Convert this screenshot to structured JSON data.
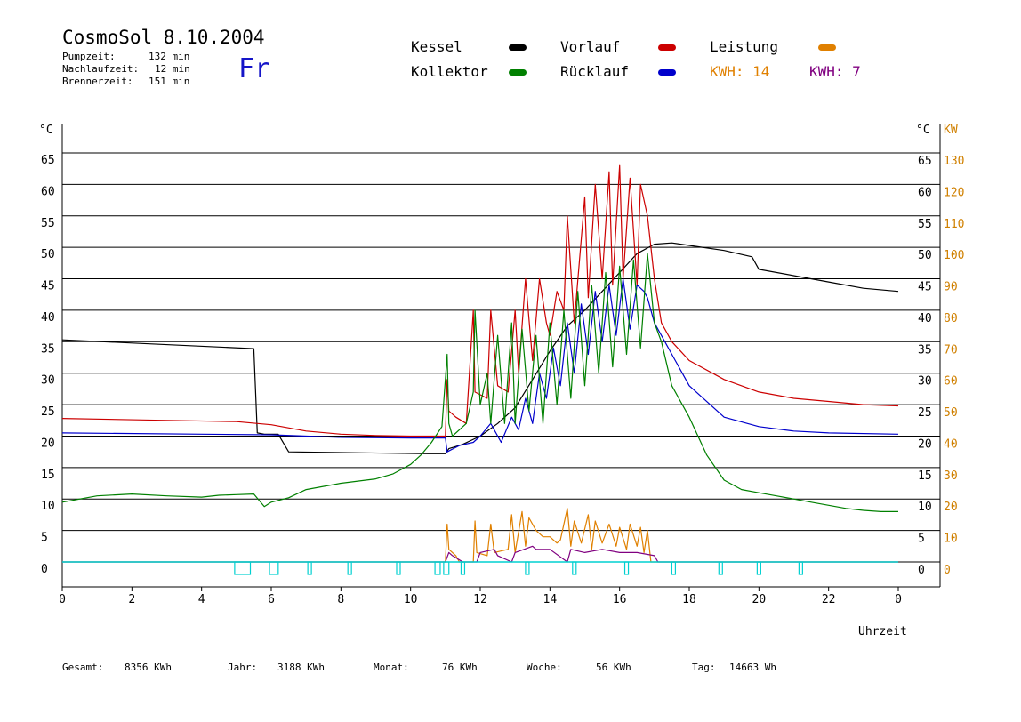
{
  "header": {
    "title": "CosmoSol 8.10.2004",
    "weekday": "Fr",
    "stats": [
      {
        "label": "Pumpzeit:",
        "value": "132 min"
      },
      {
        "label": "Nachlaufzeit:",
        "value": "12 min"
      },
      {
        "label": "Brennerzeit:",
        "value": "151 min"
      }
    ]
  },
  "legend": {
    "kessel": "Kessel",
    "kollektor": "Kollektor",
    "vorlauf": "Vorlauf",
    "ruecklauf": "Rücklauf",
    "leistung": "Leistung",
    "kwh_a": "KWH: 14",
    "kwh_b": "KWH: 7"
  },
  "footer": [
    {
      "label": "Gesamt:",
      "value": "8356 KWh"
    },
    {
      "label": "Jahr:",
      "value": "3188 KWh"
    },
    {
      "label": "Monat:",
      "value": "76 KWh"
    },
    {
      "label": "Woche:",
      "value": "56 KWh"
    },
    {
      "label": "Tag:",
      "value": "14663 Wh"
    }
  ],
  "colors": {
    "kessel": "#000000",
    "kollektor": "#008000",
    "vorlauf": "#cc0000",
    "ruecklauf": "#0000cc",
    "leistung": "#e08000",
    "leistung2": "#800080",
    "pump": "#00d0d0",
    "kw_axis": "#d08000",
    "weekday": "#1515c8"
  },
  "chart_data": {
    "type": "line",
    "xlabel": "Uhrzeit",
    "ylabel_left": "°C",
    "ylabel_right": "°C",
    "ylabel_right2": "KW",
    "xlim": [
      0,
      24
    ],
    "ylim": [
      0,
      65
    ],
    "kw_ylim": [
      0,
      130
    ],
    "x_ticks": [
      "0",
      "2",
      "4",
      "6",
      "8",
      "10",
      "12",
      "14",
      "16",
      "18",
      "20",
      "22",
      "0"
    ],
    "y_ticks": [
      "0",
      "5",
      "10",
      "15",
      "20",
      "25",
      "30",
      "35",
      "40",
      "45",
      "50",
      "55",
      "60",
      "65"
    ],
    "kw_ticks": [
      "0",
      "10",
      "20",
      "30",
      "40",
      "50",
      "60",
      "70",
      "80",
      "90",
      "100",
      "110",
      "120",
      "130"
    ],
    "grid": true,
    "series": [
      {
        "name": "Kessel",
        "color": "kessel",
        "x": [
          0,
          5.5,
          5.6,
          5.8,
          6.2,
          6.5,
          10.5,
          11.0,
          11.1,
          11.5,
          12,
          12.5,
          13,
          13.5,
          14,
          14.5,
          15,
          15.5,
          16,
          16.5,
          17,
          17.5,
          18,
          19,
          19.8,
          20,
          21,
          22,
          23,
          24
        ],
        "y": [
          35.3,
          33.9,
          20.5,
          20.3,
          20.3,
          17.5,
          17.2,
          17.2,
          18.0,
          18.7,
          20.0,
          22.0,
          24.5,
          29.0,
          33.5,
          37.5,
          40,
          43,
          46,
          49,
          50.5,
          50.7,
          50.3,
          49.5,
          48.5,
          46.5,
          45.5,
          44.5,
          43.5,
          43
        ]
      },
      {
        "name": "Vorlauf",
        "color": "vorlauf",
        "x": [
          0,
          3,
          5,
          6,
          7,
          8,
          9,
          10,
          11.0,
          11.05,
          11.1,
          11.3,
          11.6,
          11.8,
          11.85,
          12.2,
          12.3,
          12.5,
          12.8,
          13.0,
          13.1,
          13.3,
          13.5,
          13.7,
          13.9,
          14.0,
          14.2,
          14.4,
          14.5,
          14.7,
          15.0,
          15.1,
          15.3,
          15.5,
          15.7,
          15.8,
          16.0,
          16.1,
          16.3,
          16.5,
          16.6,
          16.8,
          17.0,
          17.2,
          17.5,
          18,
          19,
          20,
          21,
          22,
          23,
          24
        ],
        "y": [
          22.8,
          22.5,
          22.3,
          21.8,
          20.8,
          20.3,
          20.1,
          20.0,
          20.0,
          29,
          24,
          23,
          22,
          40,
          27,
          26,
          40,
          28,
          27,
          40,
          30,
          45,
          32,
          45,
          38,
          36,
          43,
          40,
          55,
          38,
          58,
          42,
          60,
          45,
          62,
          44,
          63,
          45,
          61,
          44,
          60,
          55,
          45,
          38,
          35,
          32,
          29,
          27,
          26,
          25.5,
          25,
          24.8
        ]
      },
      {
        "name": "Rücklauf",
        "color": "ruecklauf",
        "x": [
          0,
          4,
          6,
          8,
          10,
          11.0,
          11.05,
          11.4,
          11.8,
          12.0,
          12.3,
          12.6,
          12.9,
          13.1,
          13.3,
          13.5,
          13.7,
          13.9,
          14.1,
          14.3,
          14.5,
          14.7,
          14.9,
          15.1,
          15.3,
          15.5,
          15.7,
          15.9,
          16.1,
          16.3,
          16.5,
          16.7,
          16.8,
          17.0,
          17.3,
          17.6,
          18,
          19,
          20,
          21,
          22,
          24
        ],
        "y": [
          20.5,
          20.3,
          20.2,
          19.8,
          19.7,
          19.7,
          17.5,
          18.5,
          19,
          20,
          22,
          19,
          23,
          21,
          26,
          22,
          30,
          26,
          34,
          28,
          38,
          30,
          41,
          33,
          43,
          35,
          44,
          36,
          45,
          37,
          44,
          43,
          42,
          38,
          35,
          32,
          28,
          23,
          21.5,
          20.8,
          20.5,
          20.3
        ]
      },
      {
        "name": "Kollektor",
        "color": "kollektor",
        "x": [
          0,
          1,
          2,
          3,
          4,
          4.5,
          5,
          5.5,
          5.8,
          6.0,
          6.5,
          7,
          8,
          9,
          9.5,
          10,
          10.3,
          10.6,
          10.9,
          11.05,
          11.1,
          11.2,
          11.4,
          11.6,
          11.8,
          11.85,
          12.0,
          12.2,
          12.3,
          12.5,
          12.7,
          12.9,
          13.0,
          13.2,
          13.4,
          13.6,
          13.8,
          14.0,
          14.2,
          14.4,
          14.6,
          14.8,
          15.0,
          15.2,
          15.4,
          15.6,
          15.8,
          16.0,
          16.2,
          16.4,
          16.6,
          16.8,
          17.0,
          17.2,
          17.5,
          18,
          18.5,
          19,
          19.5,
          20,
          20.5,
          21,
          21.5,
          22,
          22.5,
          23,
          23.5,
          24
        ],
        "y": [
          9.5,
          10.5,
          10.8,
          10.5,
          10.3,
          10.6,
          10.7,
          10.8,
          8.8,
          9.5,
          10.2,
          11.5,
          12.5,
          13.2,
          14,
          15.5,
          17,
          19,
          21.5,
          33,
          22,
          20,
          21,
          22,
          27,
          40,
          25,
          30,
          22,
          36,
          22,
          38,
          22,
          37,
          24,
          36,
          22,
          38,
          25,
          40,
          26,
          43,
          28,
          44,
          30,
          46,
          31,
          47,
          33,
          48,
          34,
          49,
          38,
          35,
          28,
          23,
          17,
          13,
          11.5,
          11,
          10.5,
          10,
          9.5,
          9,
          8.5,
          8.2,
          8,
          8
        ]
      }
    ],
    "leistung_kw": {
      "x": [
        0,
        11.0,
        11.05,
        11.1,
        11.3,
        11.4,
        11.8,
        11.85,
        11.9,
        12.2,
        12.3,
        12.4,
        12.8,
        12.9,
        13.0,
        13.2,
        13.3,
        13.4,
        13.6,
        13.8,
        14.0,
        14.2,
        14.3,
        14.5,
        14.6,
        14.7,
        14.9,
        15.1,
        15.2,
        15.3,
        15.5,
        15.7,
        15.9,
        16.0,
        16.2,
        16.3,
        16.5,
        16.6,
        16.7,
        16.8,
        16.9,
        24
      ],
      "y": [
        0,
        0,
        12,
        4,
        2,
        0,
        0,
        13,
        3,
        2,
        12,
        3,
        4,
        15,
        3,
        16,
        5,
        14,
        10,
        8,
        8,
        6,
        7,
        17,
        5,
        13,
        6,
        15,
        4,
        13,
        6,
        12,
        5,
        11,
        4,
        12,
        5,
        11,
        3,
        10,
        0,
        0
      ]
    },
    "leistung2_kw": {
      "x": [
        0,
        11.0,
        11.1,
        11.2,
        11.5,
        11.9,
        12.0,
        12.4,
        12.5,
        12.9,
        13.0,
        13.5,
        13.6,
        14.0,
        14.5,
        14.6,
        15.0,
        15.5,
        16.0,
        16.5,
        17.0,
        17.1,
        24
      ],
      "y": [
        0,
        0,
        3,
        2,
        0,
        0,
        3,
        4,
        2,
        0,
        3,
        5,
        4,
        4,
        0,
        4,
        3,
        4,
        3,
        3,
        2,
        0,
        0
      ]
    },
    "pump_on": [
      [
        4.95,
        5.4
      ],
      [
        5.95,
        6.2
      ],
      [
        7.05,
        7.15
      ],
      [
        8.2,
        8.3
      ],
      [
        9.6,
        9.7
      ],
      [
        10.7,
        10.85
      ],
      [
        10.95,
        11.1
      ],
      [
        11.45,
        11.55
      ],
      [
        13.3,
        13.4
      ],
      [
        14.65,
        14.75
      ],
      [
        16.15,
        16.25
      ],
      [
        17.5,
        17.6
      ],
      [
        18.85,
        18.95
      ],
      [
        19.95,
        20.05
      ],
      [
        21.15,
        21.25
      ]
    ]
  }
}
